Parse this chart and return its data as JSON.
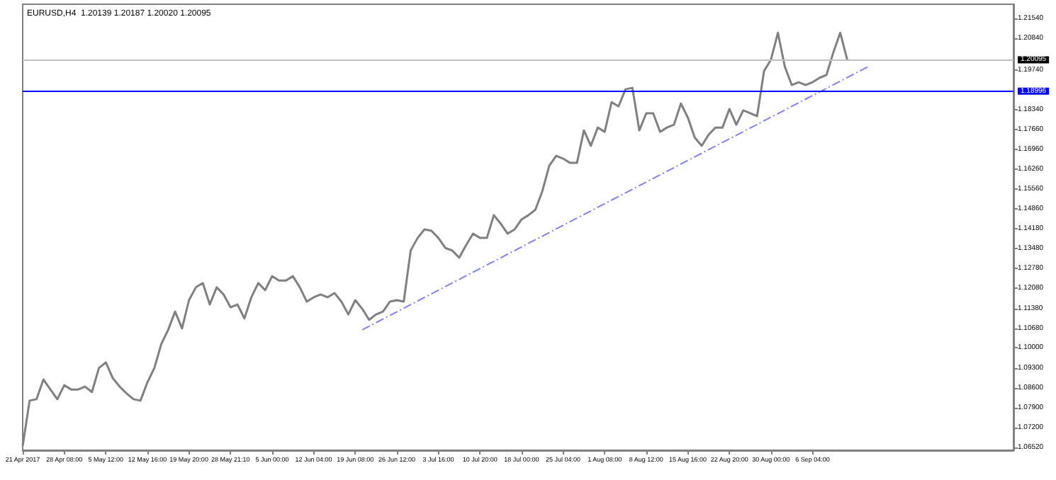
{
  "chart_data": {
    "type": "line",
    "title": "EURUSD,H4  1.20139 1.20187 1.20020 1.20095",
    "categories": [
      "21 Apr 2017",
      null,
      null,
      null,
      null,
      null,
      "28 Apr 08:00",
      null,
      null,
      null,
      null,
      null,
      "5 May 12:00",
      null,
      null,
      null,
      null,
      null,
      "12 May 16:00",
      null,
      null,
      null,
      null,
      null,
      "19 May 20:00",
      null,
      null,
      null,
      null,
      null,
      "28 May 21:10",
      null,
      null,
      null,
      null,
      null,
      "5 Jun 00:00",
      null,
      null,
      null,
      null,
      null,
      "12 Jun 04:00",
      null,
      null,
      null,
      null,
      null,
      "19 Jun 08:00",
      null,
      null,
      null,
      null,
      null,
      "26 Jun 12:00",
      null,
      null,
      null,
      null,
      null,
      "3 Jul 16:00",
      null,
      null,
      null,
      null,
      null,
      "10 Jul 20:00",
      null,
      null,
      null,
      null,
      null,
      "18 Jul 00:00",
      null,
      null,
      null,
      null,
      null,
      "25 Jul 04:00",
      null,
      null,
      null,
      null,
      null,
      "1 Aug 08:00",
      null,
      null,
      null,
      null,
      null,
      "8 Aug 12:00",
      null,
      null,
      null,
      null,
      null,
      "15 Aug 16:00",
      null,
      null,
      null,
      null,
      null,
      "22 Aug 20:00",
      null,
      null,
      null,
      null,
      null,
      "30 Aug 00:00",
      null,
      null,
      null,
      null,
      null,
      "6 Sep 04:00",
      null,
      null,
      null,
      null,
      null,
      null,
      null,
      null,
      null,
      null,
      null,
      null,
      null,
      null,
      null,
      null,
      null,
      null,
      null,
      null,
      null,
      null,
      null,
      null,
      null,
      null,
      null,
      null,
      null
    ],
    "series": [
      {
        "color": "#808080",
        "values": [
          1.0656,
          1.0815,
          1.082,
          1.0889,
          1.0854,
          1.082,
          1.0869,
          1.0854,
          1.0854,
          1.0864,
          1.0845,
          1.0929,
          1.0949,
          1.0894,
          1.0864,
          1.084,
          1.082,
          1.0815,
          1.0879,
          1.0929,
          1.1013,
          1.1063,
          1.1127,
          1.1068,
          1.1167,
          1.1212,
          1.1227,
          1.1152,
          1.1212,
          1.1187,
          1.1142,
          1.1152,
          1.1103,
          1.1177,
          1.1227,
          1.1202,
          1.1251,
          1.1236,
          1.1236,
          1.1251,
          1.1212,
          1.1162,
          1.1177,
          1.1187,
          1.1177,
          1.1192,
          1.1162,
          1.1117,
          1.1167,
          1.1137,
          1.1098,
          1.1117,
          1.1127,
          1.1162,
          1.1167,
          1.1162,
          1.1341,
          1.1385,
          1.1415,
          1.141,
          1.1385,
          1.135,
          1.1341,
          1.1316,
          1.136,
          1.14,
          1.1385,
          1.1385,
          1.1465,
          1.1435,
          1.14,
          1.1415,
          1.145,
          1.1465,
          1.1484,
          1.1549,
          1.1638,
          1.1673,
          1.1663,
          1.1648,
          1.1648,
          1.1762,
          1.1708,
          1.1772,
          1.1757,
          1.1861,
          1.1846,
          1.1906,
          1.1911,
          1.1762,
          1.1822,
          1.1822,
          1.1757,
          1.1772,
          1.1782,
          1.1856,
          1.1807,
          1.1737,
          1.1708,
          1.1747,
          1.1772,
          1.1772,
          1.1837,
          1.1782,
          1.1832,
          1.1822,
          1.1812,
          1.197,
          1.201,
          1.2104,
          1.1985,
          1.1921,
          1.1931,
          1.1921,
          1.1931,
          1.1946,
          1.1956,
          1.2035,
          1.2104,
          1.201,
          null,
          null,
          null,
          null,
          null,
          null,
          null,
          null,
          null,
          null,
          null,
          null,
          null,
          null,
          null,
          null,
          null,
          null,
          null,
          null,
          null,
          null,
          null,
          null
        ]
      },
      {
        "type": "line",
        "color": "#8080ff",
        "line_style": "dashed",
        "values": [
          null,
          null,
          null,
          null,
          null,
          null,
          null,
          null,
          null,
          null,
          null,
          null,
          null,
          null,
          null,
          null,
          null,
          null,
          null,
          null,
          null,
          null,
          null,
          null,
          null,
          null,
          null,
          null,
          null,
          null,
          null,
          null,
          null,
          null,
          null,
          null,
          null,
          null,
          null,
          null,
          null,
          null,
          null,
          null,
          null,
          null,
          null,
          null,
          null,
          1.1063,
          null,
          null,
          null,
          null,
          null,
          null,
          null,
          null,
          null,
          null,
          null,
          null,
          null,
          null,
          null,
          null,
          null,
          null,
          null,
          null,
          null,
          null,
          null,
          null,
          null,
          null,
          null,
          null,
          null,
          null,
          null,
          null,
          null,
          null,
          null,
          null,
          null,
          null,
          null,
          null,
          null,
          null,
          null,
          null,
          null,
          null,
          null,
          null,
          null,
          null,
          null,
          null,
          null,
          null,
          null,
          null,
          null,
          null,
          null,
          null,
          null,
          null,
          null,
          null,
          null,
          null,
          null,
          null,
          null,
          null,
          null,
          null,
          1.1985,
          null,
          null,
          null,
          null,
          null,
          null,
          null,
          null,
          null,
          null,
          null,
          null,
          null,
          null,
          null,
          null,
          null,
          null,
          null,
          null,
          null
        ]
      }
    ],
    "ylim": [
      1.0641,
      1.2204
    ],
    "yticks": [
      {
        "value": 1.0652,
        "label": "1.06520"
      },
      {
        "value": 1.072,
        "label": "1.07200"
      },
      {
        "value": 1.079,
        "label": "1.07900"
      },
      {
        "value": 1.086,
        "label": "1.08600"
      },
      {
        "value": 1.093,
        "label": "1.09300"
      },
      {
        "value": 1.1,
        "label": "1.10000"
      },
      {
        "value": 1.1068,
        "label": "1.10680"
      },
      {
        "value": 1.1138,
        "label": "1.11380"
      },
      {
        "value": 1.1208,
        "label": "1.12080"
      },
      {
        "value": 1.1278,
        "label": "1.12780"
      },
      {
        "value": 1.1348,
        "label": "1.13480"
      },
      {
        "value": 1.1418,
        "label": "1.14180"
      },
      {
        "value": 1.1486,
        "label": "1.14860"
      },
      {
        "value": 1.1556,
        "label": "1.15560"
      },
      {
        "value": 1.1626,
        "label": "1.16260"
      },
      {
        "value": 1.1696,
        "label": "1.16960"
      },
      {
        "value": 1.1766,
        "label": "1.17660"
      },
      {
        "value": 1.1834,
        "label": "1.18340"
      },
      {
        "value": 1.1974,
        "label": "1.19740"
      },
      {
        "value": 1.2084,
        "label": "1.20840"
      },
      {
        "value": 1.2154,
        "label": "1.21540"
      }
    ],
    "ref_lines": [
      {
        "axis": "y",
        "value": 1.20095,
        "label": "1.20095",
        "color": "#c0c0c0"
      },
      {
        "axis": "y",
        "value": 1.18996,
        "label": "1.18996",
        "color": "#0000ff"
      }
    ],
    "grid": false,
    "marker": "none"
  }
}
